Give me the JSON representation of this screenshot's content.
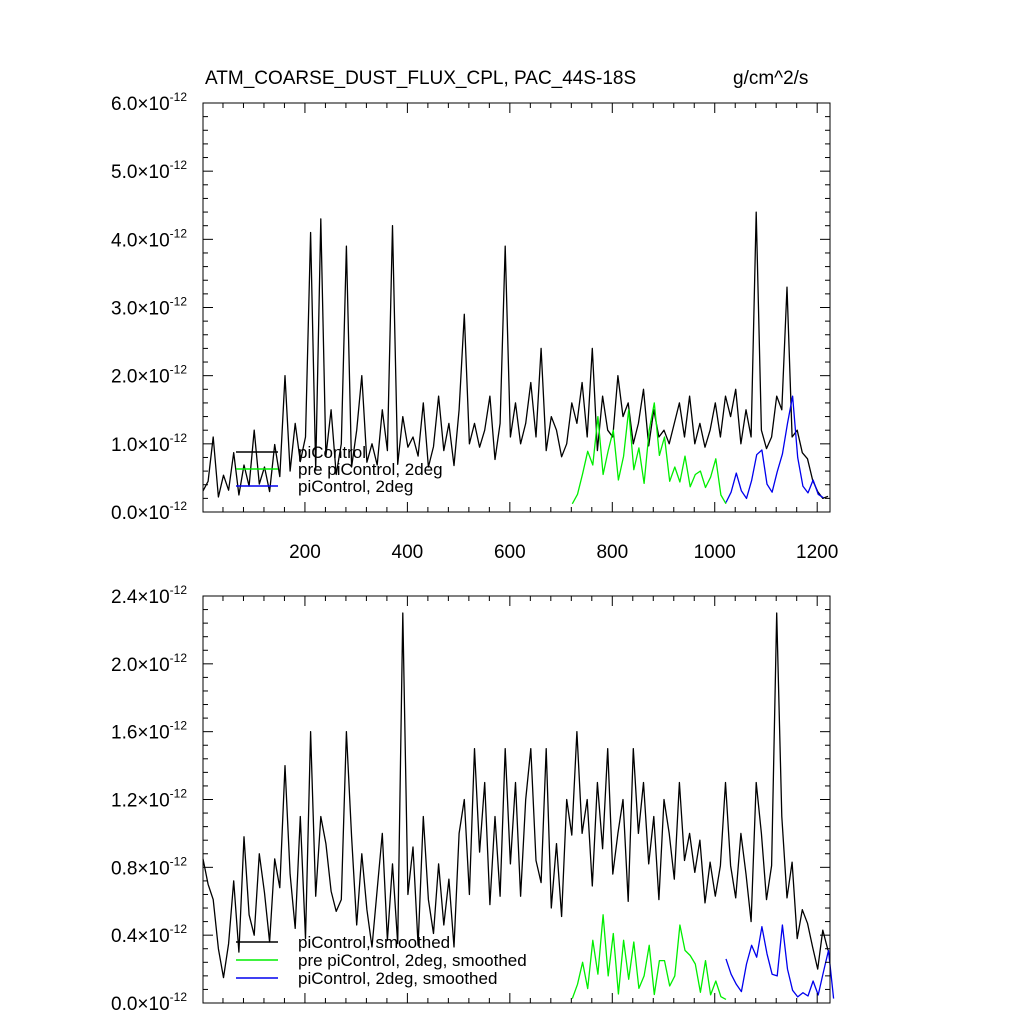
{
  "chart_data": [
    {
      "type": "line",
      "title": "ATM_COARSE_DUST_FLUX_CPL, PAC_44S-18S",
      "units": "g/cm^2/s",
      "xlim": [
        1,
        1225
      ],
      "ylim": [
        0,
        6e-12
      ],
      "x_ticks": [
        "200",
        "400",
        "600",
        "800",
        "1000",
        "1200"
      ],
      "y_ticks": [
        {
          "mantissa": "0.0",
          "exp": "-12"
        },
        {
          "mantissa": "1.0",
          "exp": "-12"
        },
        {
          "mantissa": "2.0",
          "exp": "-12"
        },
        {
          "mantissa": "3.0",
          "exp": "-12"
        },
        {
          "mantissa": "4.0",
          "exp": "-12"
        },
        {
          "mantissa": "5.0",
          "exp": "-12"
        },
        {
          "mantissa": "6.0",
          "exp": "-12"
        }
      ],
      "series": [
        {
          "name": "piControl",
          "color": "#000000",
          "x_start": 1,
          "x_step": 10,
          "values": [
            3.1e-13,
            4.5e-13,
            1.1e-12,
            2.2e-13,
            5.4e-13,
            3.2e-13,
            8.7e-13,
            2.5e-13,
            6.9e-13,
            3.8e-13,
            1.2e-12,
            4.1e-13,
            6.6e-13,
            3e-13,
            9.9e-13,
            5.2e-13,
            2e-12,
            6e-13,
            1.3e-12,
            7.4e-13,
            1.1e-12,
            4.1e-12,
            6.3e-13,
            4.3e-12,
            8.2e-13,
            1.5e-12,
            5.5e-13,
            1e-12,
            3.9e-12,
            6.6e-13,
            1.2e-12,
            2e-12,
            7.3e-13,
            1e-12,
            6.9e-13,
            1.5e-12,
            9e-13,
            4.2e-12,
            7e-13,
            1.4e-12,
            9.5e-13,
            1.1e-12,
            8.2e-13,
            1.6e-12,
            6.6e-13,
            9.6e-13,
            1.7e-12,
            9e-13,
            1.3e-12,
            6.8e-13,
            1.5e-12,
            2.9e-12,
            1e-12,
            1.3e-12,
            9.5e-13,
            1.2e-12,
            1.7e-12,
            7.7e-13,
            1.3e-12,
            3.9e-12,
            1.1e-12,
            1.6e-12,
            1e-12,
            1.3e-12,
            1.9e-12,
            1.1e-12,
            2.4e-12,
            9e-13,
            1.4e-12,
            1.2e-12,
            8.1e-13,
            1e-12,
            1.6e-12,
            1.3e-12,
            1.9e-12,
            1.1e-12,
            2.4e-12,
            9e-13,
            1.7e-12,
            1.2e-12,
            1.1e-12,
            2e-12,
            1.4e-12,
            1.6e-12,
            1e-12,
            1.3e-12,
            1.8e-12,
            9.7e-13,
            1.5e-12,
            1.1e-12,
            1.2e-12,
            1e-12,
            1.3e-12,
            1.6e-12,
            1.1e-12,
            1.7e-12,
            1e-12,
            1.3e-12,
            9.5e-13,
            1.2e-12,
            1.6e-12,
            1.1e-12,
            1.7e-12,
            1.4e-12,
            1.8e-12,
            1e-12,
            1.5e-12,
            1.1e-12,
            4.4e-12,
            1.2e-12,
            9.3e-13,
            1.1e-12,
            1.7e-12,
            1.5e-12,
            3.3e-12,
            1.1e-12,
            1.2e-12,
            8.7e-13,
            7.8e-13,
            4.7e-13,
            3e-13,
            2e-13,
            2.3e-13
          ]
        },
        {
          "name": "pre piControl, 2deg",
          "color": "#00ee00",
          "x_start": 722,
          "x_step": 10,
          "values": [
            1.2e-13,
            2.6e-13,
            5.6e-13,
            8.9e-13,
            6.9e-13,
            1.4e-12,
            5.5e-13,
            9e-13,
            1.2e-12,
            4.7e-13,
            8.2e-13,
            1.5e-12,
            6.2e-13,
            9.4e-13,
            4.2e-13,
            1.2e-12,
            1.6e-12,
            8.3e-13,
            1.1e-12,
            4.5e-13,
            6.6e-13,
            4.4e-13,
            8.2e-13,
            3.7e-13,
            5.5e-13,
            6e-13,
            3.6e-13,
            5.1e-13,
            7.8e-13,
            2.5e-13,
            1.2e-13
          ]
        },
        {
          "name": "piControl, 2deg",
          "color": "#0000ee",
          "x_start": 1022,
          "x_step": 10,
          "values": [
            1.4e-13,
            2.9e-13,
            5.7e-13,
            3.1e-13,
            2e-13,
            4.6e-13,
            8.4e-13,
            9.1e-13,
            4.1e-13,
            2.9e-13,
            5.9e-13,
            8.5e-13,
            1.3e-12,
            1.7e-12,
            8e-13,
            3.8e-13,
            2.8e-13,
            4.7e-13,
            2.6e-13,
            2.1e-13
          ]
        }
      ]
    },
    {
      "type": "line",
      "title": "",
      "xlim": [
        1,
        1225
      ],
      "ylim": [
        0,
        2.4e-12
      ],
      "y_ticks": [
        {
          "mantissa": "0.0",
          "exp": "-12"
        },
        {
          "mantissa": "0.4",
          "exp": "-12"
        },
        {
          "mantissa": "0.8",
          "exp": "-12"
        },
        {
          "mantissa": "1.2",
          "exp": "-12"
        },
        {
          "mantissa": "1.6",
          "exp": "-12"
        },
        {
          "mantissa": "2.0",
          "exp": "-12"
        },
        {
          "mantissa": "2.4",
          "exp": "-12"
        }
      ],
      "series": [
        {
          "name": "piControl, smoothed",
          "color": "#000000",
          "x_start": 1,
          "x_step": 10,
          "values": [
            8.5e-13,
            7e-13,
            6.1e-13,
            3.2e-13,
            1.5e-13,
            3.5e-13,
            7.2e-13,
            3e-13,
            9.8e-13,
            5.2e-13,
            4e-13,
            8.8e-13,
            6.5e-13,
            3.6e-13,
            8.5e-13,
            6.8e-13,
            1.4e-12,
            7.6e-13,
            4.4e-13,
            1.1e-12,
            3.8e-13,
            1.6e-12,
            6.3e-13,
            1.1e-12,
            9.4e-13,
            6.6e-13,
            5.4e-13,
            6.1e-13,
            1.6e-12,
            9.8e-13,
            4.6e-13,
            8.8e-13,
            5.5e-13,
            3.3e-13,
            6.7e-13,
            1e-12,
            3.7e-13,
            8.2e-13,
            3.5e-13,
            2.3e-12,
            6.4e-13,
            9.2e-13,
            3.4e-13,
            1.1e-12,
            6.1e-13,
            4.1e-13,
            8.2e-13,
            4.6e-13,
            7.3e-13,
            3.3e-13,
            1e-12,
            1.2e-12,
            6.4e-13,
            1.5e-12,
            8.9e-13,
            1.3e-12,
            5.8e-13,
            1.1e-12,
            6.3e-13,
            1.5e-12,
            8.2e-13,
            1.3e-12,
            6.3e-13,
            1.2e-12,
            1.5e-12,
            8.4e-13,
            7.1e-13,
            1.5e-12,
            5.6e-13,
            9.4e-13,
            5.1e-13,
            1.2e-12,
            9.9e-13,
            1.6e-12,
            1e-12,
            1.2e-12,
            6.9e-13,
            1.3e-12,
            9.1e-13,
            1.5e-12,
            7.6e-13,
            1e-12,
            1.2e-12,
            6e-13,
            1.5e-12,
            1e-12,
            1.3e-12,
            8.2e-13,
            1.1e-12,
            6.1e-13,
            1.2e-12,
            1e-12,
            7.3e-13,
            1.3e-12,
            8.4e-13,
            1e-12,
            7.7e-13,
            9.6e-13,
            5.9e-13,
            8.3e-13,
            6.3e-13,
            8.1e-13,
            1.3e-12,
            8.1e-13,
            6.2e-13,
            1e-12,
            7.6e-13,
            4.8e-13,
            1.3e-12,
            1e-12,
            6.1e-13,
            8.1e-13,
            2.3e-12,
            1.1e-12,
            6.2e-13,
            8.3e-13,
            3.8e-13,
            5.5e-13,
            4.7e-13,
            3.3e-13,
            2e-13,
            4.3e-13,
            3.1e-13
          ]
        },
        {
          "name": "pre piControl, 2deg, smoothed",
          "color": "#00ee00",
          "x_start": 722,
          "x_step": 10,
          "values": [
            2.6e-14,
            1.1e-13,
            2.4e-13,
            8.5e-14,
            3.7e-13,
            1.7e-13,
            5.2e-13,
            1.6e-13,
            4.1e-13,
            5.3e-14,
            3.7e-13,
            1.4e-13,
            3.6e-13,
            8.6e-14,
            1.6e-13,
            3.4e-13,
            5e-14,
            2.5e-13,
            2.5e-13,
            1e-13,
            1.6e-13,
            4.6e-13,
            3.1e-13,
            2.8e-13,
            2.3e-13,
            6.3e-14,
            2.5e-13,
            4.8e-14,
            1.3e-13,
            3.7e-14,
            2.1e-14
          ]
        },
        {
          "name": "piControl, 2deg, smoothed",
          "color": "#0000ee",
          "x_start": 1022,
          "x_step": 10,
          "values": [
            2.6e-13,
            1.7e-13,
            1.1e-13,
            6.7e-14,
            2.3e-13,
            3.4e-13,
            2.7e-13,
            4.5e-13,
            2.9e-13,
            1.7e-13,
            1.6e-13,
            4.6e-13,
            2e-13,
            7.5e-14,
            3.6e-14,
            6.1e-14,
            4.1e-14,
            1.3e-13,
            4.7e-14,
            1.8e-13,
            3.1e-13,
            2.6e-14
          ]
        }
      ]
    }
  ]
}
